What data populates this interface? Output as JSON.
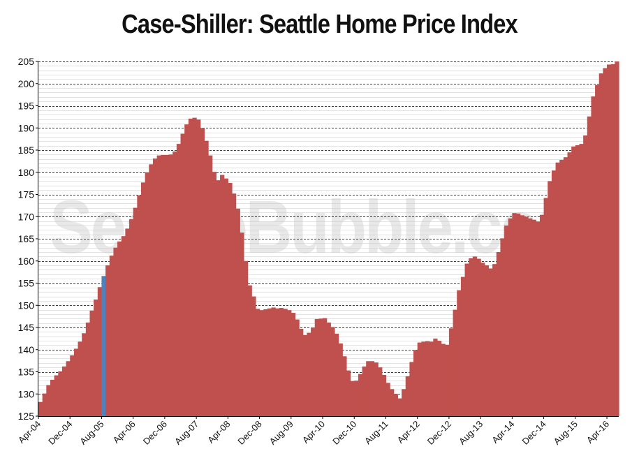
{
  "chart_data": {
    "type": "bar",
    "title": "Case-Shiller: Seattle Home Price Index",
    "watermark": "SeattleBubble.com",
    "xlabel": "",
    "ylabel": "",
    "ylim": [
      125,
      205
    ],
    "yticks": [
      125,
      130,
      135,
      140,
      145,
      150,
      155,
      160,
      165,
      170,
      175,
      180,
      185,
      190,
      195,
      200,
      205
    ],
    "grid": {
      "major": true,
      "minor": true
    },
    "start_month": "Apr-04",
    "xtick_labels": [
      "Apr-04",
      "Dec-04",
      "Aug-05",
      "Apr-06",
      "Dec-06",
      "Aug-07",
      "Apr-08",
      "Dec-08",
      "Aug-09",
      "Apr-10",
      "Dec-10",
      "Aug-11",
      "Apr-12",
      "Dec-12",
      "Aug-13",
      "Apr-14",
      "Dec-14",
      "Aug-15",
      "Apr-16"
    ],
    "highlight_label": "Aug-05",
    "colors": {
      "bar": "#c0504d",
      "highlight": "#4f81bd"
    },
    "series": [
      {
        "values": [
          128.2,
          130.1,
          132.0,
          133.2,
          134.2,
          135.1,
          136.2,
          137.4,
          138.7,
          140.2,
          141.8,
          143.7,
          146.1,
          148.8,
          151.3,
          154.1,
          156.6,
          159.0,
          161.2,
          163.0,
          164.4,
          165.6,
          167.3,
          169.4,
          172.0,
          174.8,
          177.7,
          180.0,
          181.8,
          183.1,
          183.8,
          183.9,
          183.9,
          184.0,
          184.7,
          186.4,
          188.7,
          190.8,
          192.1,
          192.3,
          191.9,
          190.0,
          187.1,
          183.8,
          180.1,
          178.2,
          179.4,
          178.6,
          177.6,
          175.2,
          171.8,
          166.4,
          160.0,
          154.5,
          152.0,
          149.2,
          148.9,
          149.1,
          149.3,
          149.5,
          149.3,
          149.4,
          149.2,
          148.9,
          148.3,
          146.8,
          144.7,
          143.3,
          143.8,
          145.0,
          146.9,
          147.0,
          147.1,
          146.1,
          145.1,
          143.6,
          141.4,
          138.5,
          135.3,
          132.9,
          133.0,
          134.5,
          136.2,
          137.4,
          137.4,
          137.1,
          136.0,
          134.3,
          132.5,
          131.1,
          130.0,
          129.0,
          131.1,
          134.0,
          137.2,
          139.9,
          141.6,
          141.8,
          141.9,
          141.8,
          142.5,
          142.0,
          141.3,
          141.1,
          144.8,
          149.0,
          153.4,
          156.4,
          159.4,
          160.6,
          161.0,
          160.5,
          159.6,
          159.0,
          158.3,
          159.3,
          162.0,
          165.1,
          168.0,
          169.6,
          170.8,
          170.7,
          170.3,
          170.0,
          169.6,
          169.3,
          168.9,
          170.4,
          174.2,
          178.0,
          180.4,
          182.2,
          182.8,
          183.4,
          184.5,
          185.8,
          186.1,
          186.4,
          188.3,
          192.6,
          197.1,
          199.7,
          202.3,
          203.5,
          204.3,
          204.4,
          205.0
        ]
      }
    ]
  }
}
